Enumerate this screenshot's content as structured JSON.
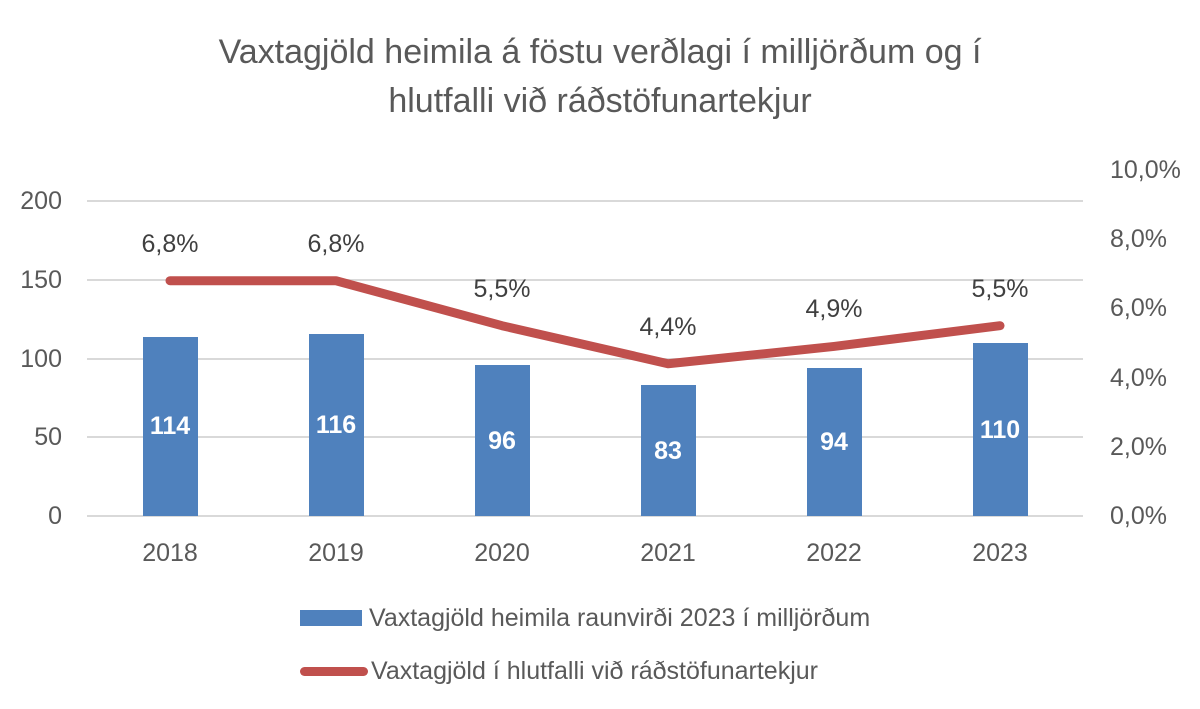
{
  "title_lines": [
    "Vaxtagjöld heimila á föstu verðlagi í milljörðum og í",
    "hlutfalli við ráðstöfunartekjur"
  ],
  "chart_data": {
    "type": "bar+line combo",
    "title": "Vaxtagjöld heimila á föstu verðlagi í milljörðum og í hlutfalli við ráðstöfunartekjur",
    "categories": [
      "2018",
      "2019",
      "2020",
      "2021",
      "2022",
      "2023"
    ],
    "series": [
      {
        "name": "Vaxtagjöld heimila raunvirði 2023 í milljörðum",
        "type": "bar",
        "axis": "left",
        "color": "#4f81bd",
        "values": [
          114,
          116,
          96,
          83,
          94,
          110
        ],
        "labels": [
          "114",
          "116",
          "96",
          "83",
          "94",
          "110"
        ]
      },
      {
        "name": "Vaxtagjöld í hlutfalli við ráðstöfunartekjur",
        "type": "line",
        "axis": "right",
        "color": "#c0504d",
        "values": [
          6.8,
          6.8,
          5.5,
          4.4,
          4.9,
          5.5
        ],
        "labels": [
          "6,8%",
          "6,8%",
          "5,5%",
          "4,4%",
          "4,9%",
          "5,5%"
        ]
      }
    ],
    "left_axis": {
      "tick_labels": [
        "200",
        "150",
        "100",
        "50",
        "0"
      ],
      "tick_values": [
        200,
        150,
        100,
        50,
        0
      ],
      "range": [
        0,
        220
      ]
    },
    "right_axis": {
      "tick_labels": [
        "10,0%",
        "8,0%",
        "6,0%",
        "4,0%",
        "2,0%",
        "0,0%"
      ],
      "tick_values": [
        10,
        8,
        6,
        4,
        2,
        0
      ],
      "range": [
        0,
        10
      ]
    },
    "grid": true,
    "legend_position": "bottom"
  },
  "legend": {
    "items": [
      {
        "label": "Vaxtagjöld heimila raunvirði 2023 í milljörðum",
        "swatch": "bar",
        "color": "#4f81bd"
      },
      {
        "label": "Vaxtagjöld í hlutfalli við ráðstöfunartekjur",
        "swatch": "line",
        "color": "#c0504d"
      }
    ]
  },
  "colors": {
    "bar": "#4f81bd",
    "line": "#c0504d",
    "gridline": "#d9d9d9",
    "axis_text": "#595959",
    "title_text": "#595959",
    "data_label_text": "#404040",
    "bar_label_text": "#ffffff",
    "background": "#ffffff"
  }
}
